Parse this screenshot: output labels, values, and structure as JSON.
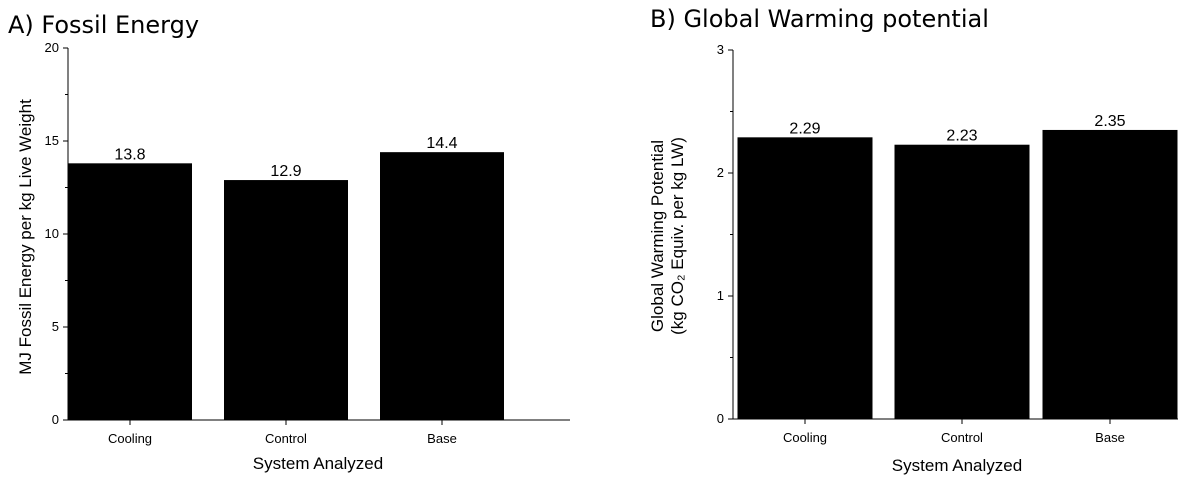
{
  "chart_data": [
    {
      "type": "bar",
      "title": "A) Fossil Energy",
      "categories": [
        "Cooling",
        "Control",
        "Base"
      ],
      "values": [
        13.8,
        12.9,
        14.4
      ],
      "data_labels": [
        "13.8",
        "12.9",
        "14.4"
      ],
      "xlabel": "System Analyzed",
      "ylabel": "MJ Fossil Energy per kg Live Weight",
      "ylim": [
        0,
        20
      ],
      "yticks": [
        "0",
        "5",
        "10",
        "15",
        "20"
      ],
      "bar_color": "#000000",
      "grid": false
    },
    {
      "type": "bar",
      "title": "B) Global Warming potential",
      "categories": [
        "Cooling",
        "Control",
        "Base"
      ],
      "values": [
        2.29,
        2.23,
        2.35
      ],
      "data_labels": [
        "2.29",
        "2.23",
        "2.35"
      ],
      "xlabel": "System Analyzed",
      "ylabel_line1": "Global Warming Potential",
      "ylabel_line2": "(kg CO₂ Equiv. per kg LW)",
      "ylim": [
        0,
        3
      ],
      "yticks": [
        "0",
        "1",
        "2",
        "3"
      ],
      "bar_color": "#000000",
      "grid": false
    }
  ]
}
